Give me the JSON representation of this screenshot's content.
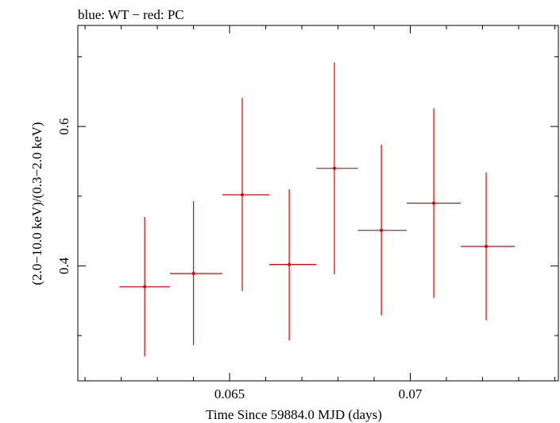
{
  "header": {
    "title": "blue: WT − red: PC"
  },
  "chart_data": {
    "type": "scatter",
    "title": "blue: WT − red: PC",
    "xlabel": "Time Since 59884.0 MJD (days)",
    "ylabel": "(2.0−10.0 keV)/(0.3−2.0 keV)",
    "xlim": [
      0.0608,
      0.0741
    ],
    "ylim": [
      0.235,
      0.745
    ],
    "xticks": [
      0.065,
      0.07
    ],
    "xtick_labels": [
      "0.065",
      "0.07"
    ],
    "yticks": [
      0.4,
      0.6
    ],
    "ytick_labels": [
      "0.4",
      "0.6"
    ],
    "x_minor_ticks": [
      0.061,
      0.062,
      0.063,
      0.064,
      0.066,
      0.067,
      0.068,
      0.069,
      0.071,
      0.072,
      0.073,
      0.074
    ],
    "y_minor_ticks": [
      0.3,
      0.5,
      0.7
    ],
    "grid": false,
    "series": [
      {
        "color": "#e00000",
        "points": [
          {
            "x": 0.06265,
            "x_lo": 0.06195,
            "x_hi": 0.06335,
            "y": 0.37,
            "y_lo": 0.27,
            "y_hi": 0.47
          },
          {
            "x": 0.064,
            "x_lo": 0.06335,
            "x_hi": 0.0648,
            "y": 0.389,
            "y_lo": 0.286,
            "y_hi": 0.493
          },
          {
            "x": 0.06535,
            "x_lo": 0.0648,
            "x_hi": 0.0661,
            "y": 0.502,
            "y_lo": 0.364,
            "y_hi": 0.641
          },
          {
            "x": 0.06665,
            "x_lo": 0.0661,
            "x_hi": 0.0674,
            "y": 0.402,
            "y_lo": 0.293,
            "y_hi": 0.51
          },
          {
            "x": 0.0679,
            "x_lo": 0.0674,
            "x_hi": 0.06855,
            "y": 0.54,
            "y_lo": 0.388,
            "y_hi": 0.692
          },
          {
            "x": 0.0692,
            "x_lo": 0.06855,
            "x_hi": 0.0699,
            "y": 0.451,
            "y_lo": 0.329,
            "y_hi": 0.574
          },
          {
            "x": 0.07065,
            "x_lo": 0.0699,
            "x_hi": 0.0714,
            "y": 0.49,
            "y_lo": 0.354,
            "y_hi": 0.626
          },
          {
            "x": 0.0721,
            "x_lo": 0.0714,
            "x_hi": 0.0729,
            "y": 0.428,
            "y_lo": 0.322,
            "y_hi": 0.534
          }
        ]
      }
    ]
  }
}
